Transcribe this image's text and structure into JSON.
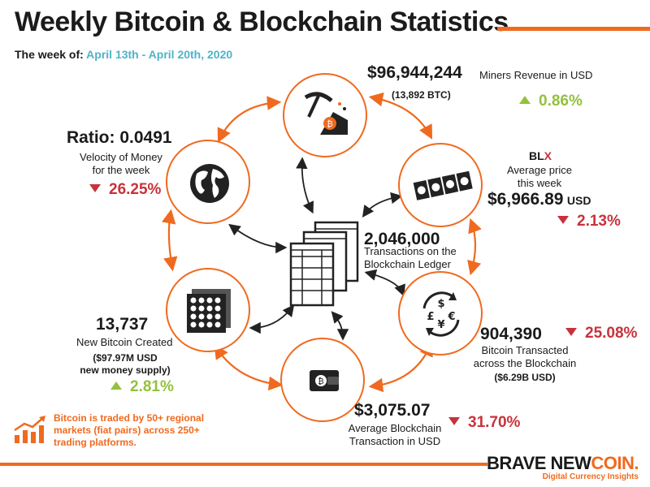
{
  "header": {
    "title": "Weekly Bitcoin & Blockchain Statistics",
    "week_label": "The week of:",
    "week_dates": "April 13th - April 20th, 2020"
  },
  "miners": {
    "value": "$96,944,244",
    "label": "Miners Revenue in USD",
    "sub": "(13,892 BTC)",
    "change": "0.86%",
    "direction": "up"
  },
  "blx": {
    "logo_bl": "BL",
    "logo_x": "X",
    "label_line1": "Average price",
    "label_line2": "this week",
    "value": "$6,966.89",
    "unit": "USD",
    "change": "2.13%",
    "direction": "down"
  },
  "velocity": {
    "value": "Ratio: 0.0491",
    "label_line1": "Velocity of Money",
    "label_line2": "for the week",
    "change": "26.25%",
    "direction": "down"
  },
  "transactions": {
    "value": "2,046,000",
    "label_line1": "Transactions on the",
    "label_line2": "Blockchain Ledger"
  },
  "new_btc": {
    "value": "13,737",
    "label": "New Bitcoin Created",
    "sub_line1": "($97.97M USD",
    "sub_line2": "new money supply)",
    "change": "2.81%",
    "direction": "up"
  },
  "transacted": {
    "value": "904,390",
    "change": "25.08%",
    "direction": "down",
    "label_line1": "Bitcoin Transacted",
    "label_line2": "across the Blockchain",
    "sub": "($6.29B USD)"
  },
  "avg_tx": {
    "value": "$3,075.07",
    "change": "31.70%",
    "direction": "down",
    "label_line1": "Average Blockchain",
    "label_line2": "Transaction in USD"
  },
  "note": {
    "text": "Bitcoin is traded by 50+ regional markets (fiat pairs) across 250+ trading platforms."
  },
  "footer": {
    "brand_a": "BRAVE NEW",
    "brand_b": "COIN.",
    "tagline": "Digital Currency Insights"
  },
  "colors": {
    "accent": "#ef6a1f",
    "up": "#93c13e",
    "down": "#c8323c",
    "dates": "#4fb3c7"
  },
  "icons": [
    "pickaxe-icon",
    "cash-stack-icon",
    "currency-exchange-icon",
    "wallet-icon",
    "coin-grid-icon",
    "globe-icon",
    "ledger-icon",
    "growth-chart-icon"
  ]
}
